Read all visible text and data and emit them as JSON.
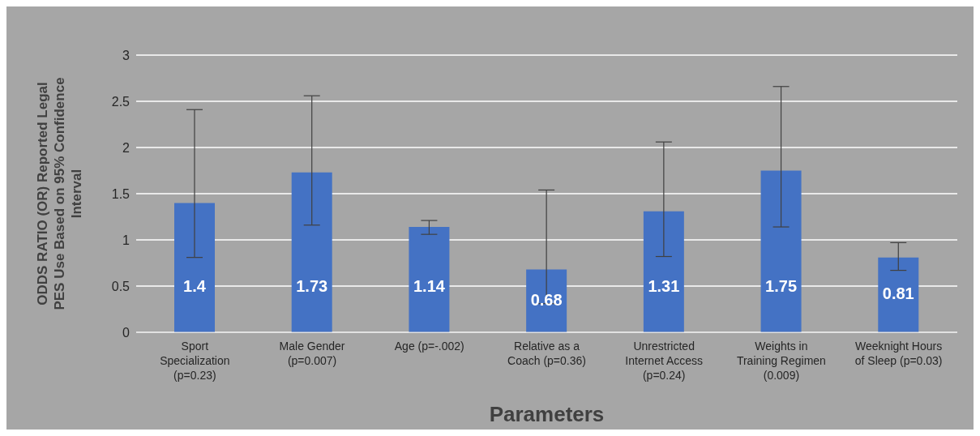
{
  "chart_data": {
    "type": "bar",
    "ylabel": "ODDS RATIO (OR) Reported Legal PES Use Based on 95% Confidence Interval",
    "xlabel": "Parameters",
    "categories": [
      "Sport Specialization (p=0.23)",
      "Male Gender (p=0.007)",
      "Age (p=-.002)",
      "Relative as a Coach (p=0.36)",
      "Unrestricted Internet Access (p=0.24)",
      "Weights in Training Regimen (0.009)",
      "Weeknight Hours of Sleep (p=0.03)"
    ],
    "values": [
      1.4,
      1.73,
      1.14,
      0.68,
      1.31,
      1.75,
      0.81
    ],
    "errors": [
      [
        0.81,
        2.41
      ],
      [
        1.16,
        2.56
      ],
      [
        1.06,
        1.21
      ],
      [
        0.31,
        1.54
      ],
      [
        0.82,
        2.06
      ],
      [
        1.14,
        2.66
      ],
      [
        0.67,
        0.97
      ]
    ],
    "color": "#4472c4",
    "ylim": [
      0,
      3
    ],
    "yticks": [
      0,
      0.5,
      1,
      1.5,
      2,
      2.5,
      3
    ],
    "grid": "y",
    "data_labels": true,
    "legend": false
  }
}
